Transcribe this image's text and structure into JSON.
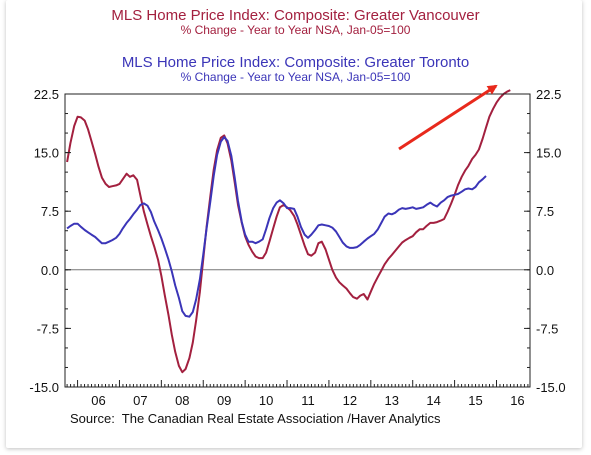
{
  "chart_data": {
    "type": "line",
    "title": "MLS Home Price Index: Composite: Greater Vancouver",
    "subtitle": "% Change - Year to Year    NSA, Jan-05=100",
    "title2": "MLS Home Price Index: Composite: Greater Toronto",
    "subtitle2": "% Change - Year to Year    NSA, Jan-05=100",
    "source": "Source:  The Canadian Real Estate Association /Haver Analytics",
    "xlim": [
      2005.7,
      2016.8
    ],
    "ylim": [
      -15,
      22.5
    ],
    "x_tick_labels": [
      "06",
      "07",
      "08",
      "09",
      "10",
      "11",
      "12",
      "13",
      "14",
      "15",
      "16"
    ],
    "y_tick_labels": [
      "22.5",
      "15.0",
      "7.5",
      "0.0",
      "-7.5",
      "-15.0"
    ],
    "y_ticks": [
      22.5,
      15,
      7.5,
      0,
      -7.5,
      -15
    ],
    "zero_line": true,
    "series": [
      {
        "name": "Greater Vancouver",
        "color": "#a3203f",
        "x": [
          2005.75,
          2005.83,
          2005.92,
          2006.0,
          2006.08,
          2006.17,
          2006.25,
          2006.33,
          2006.42,
          2006.5,
          2006.58,
          2006.67,
          2006.75,
          2006.83,
          2006.92,
          2007.0,
          2007.08,
          2007.17,
          2007.25,
          2007.33,
          2007.42,
          2007.5,
          2007.58,
          2007.67,
          2007.75,
          2007.83,
          2007.92,
          2008.0,
          2008.08,
          2008.17,
          2008.25,
          2008.33,
          2008.42,
          2008.5,
          2008.58,
          2008.67,
          2008.75,
          2008.83,
          2008.92,
          2009.0,
          2009.08,
          2009.17,
          2009.25,
          2009.33,
          2009.42,
          2009.5,
          2009.58,
          2009.67,
          2009.75,
          2009.83,
          2009.92,
          2010.0,
          2010.08,
          2010.17,
          2010.25,
          2010.33,
          2010.42,
          2010.5,
          2010.58,
          2010.67,
          2010.75,
          2010.83,
          2010.92,
          2011.0,
          2011.08,
          2011.17,
          2011.25,
          2011.33,
          2011.42,
          2011.5,
          2011.58,
          2011.67,
          2011.75,
          2011.83,
          2011.92,
          2012.0,
          2012.08,
          2012.17,
          2012.25,
          2012.33,
          2012.42,
          2012.5,
          2012.58,
          2012.67,
          2012.75,
          2012.83,
          2012.92,
          2013.0,
          2013.08,
          2013.17,
          2013.25,
          2013.33,
          2013.42,
          2013.5,
          2013.58,
          2013.67,
          2013.75,
          2013.83,
          2013.92,
          2014.0,
          2014.08,
          2014.17,
          2014.25,
          2014.33,
          2014.42,
          2014.5,
          2014.58,
          2014.67,
          2014.75,
          2014.83,
          2014.92,
          2015.0,
          2015.08,
          2015.17,
          2015.25,
          2015.33,
          2015.42,
          2015.5,
          2015.58,
          2015.67,
          2015.75,
          2015.83,
          2015.92,
          2016.0,
          2016.08,
          2016.17,
          2016.25,
          2016.33
        ],
        "y": [
          13.8,
          16.2,
          18.4,
          19.6,
          19.5,
          19.1,
          18.0,
          16.5,
          14.8,
          13.2,
          11.8,
          11.0,
          10.6,
          10.7,
          10.8,
          11.0,
          11.6,
          12.3,
          11.9,
          12.1,
          11.5,
          9.5,
          7.5,
          5.8,
          4.3,
          3.0,
          1.3,
          -0.8,
          -3.2,
          -5.8,
          -8.3,
          -10.5,
          -12.3,
          -13.1,
          -12.7,
          -11.3,
          -9.3,
          -6.5,
          -2.8,
          1.3,
          5.5,
          9.5,
          12.8,
          15.3,
          16.9,
          17.2,
          16.2,
          14.0,
          11.2,
          8.3,
          6.0,
          4.3,
          3.2,
          2.3,
          1.7,
          1.5,
          1.5,
          2.2,
          3.6,
          5.3,
          6.8,
          8.0,
          8.3,
          8.0,
          7.6,
          6.9,
          5.8,
          4.5,
          3.1,
          2.0,
          1.8,
          2.2,
          3.4,
          3.6,
          2.6,
          1.3,
          0.0,
          -1.0,
          -1.6,
          -2.0,
          -2.4,
          -3.0,
          -3.5,
          -3.7,
          -3.3,
          -3.1,
          -3.8,
          -2.8,
          -1.8,
          -0.9,
          -0.1,
          0.7,
          1.4,
          1.9,
          2.4,
          3.0,
          3.5,
          3.8,
          4.1,
          4.3,
          4.8,
          5.2,
          5.2,
          5.6,
          6.0,
          6.0,
          6.1,
          6.3,
          6.5,
          7.4,
          8.5,
          9.6,
          10.8,
          11.9,
          12.7,
          13.3,
          14.2,
          14.7,
          15.4,
          16.8,
          18.2,
          19.6,
          20.6,
          21.4,
          22.0,
          22.5,
          22.8,
          23.0
        ]
      },
      {
        "name": "Greater Toronto",
        "color": "#3b35b8",
        "x": [
          2005.75,
          2005.83,
          2005.92,
          2006.0,
          2006.08,
          2006.17,
          2006.25,
          2006.33,
          2006.42,
          2006.5,
          2006.58,
          2006.67,
          2006.75,
          2006.83,
          2006.92,
          2007.0,
          2007.08,
          2007.17,
          2007.25,
          2007.33,
          2007.42,
          2007.5,
          2007.58,
          2007.67,
          2007.75,
          2007.83,
          2007.92,
          2008.0,
          2008.08,
          2008.17,
          2008.25,
          2008.33,
          2008.42,
          2008.5,
          2008.58,
          2008.67,
          2008.75,
          2008.83,
          2008.92,
          2009.0,
          2009.08,
          2009.17,
          2009.25,
          2009.33,
          2009.42,
          2009.5,
          2009.58,
          2009.67,
          2009.75,
          2009.83,
          2009.92,
          2010.0,
          2010.08,
          2010.17,
          2010.25,
          2010.33,
          2010.42,
          2010.5,
          2010.58,
          2010.67,
          2010.75,
          2010.83,
          2010.92,
          2011.0,
          2011.08,
          2011.17,
          2011.25,
          2011.33,
          2011.42,
          2011.5,
          2011.58,
          2011.67,
          2011.75,
          2011.83,
          2011.92,
          2012.0,
          2012.08,
          2012.17,
          2012.25,
          2012.33,
          2012.42,
          2012.5,
          2012.58,
          2012.67,
          2012.75,
          2012.83,
          2012.92,
          2013.0,
          2013.08,
          2013.17,
          2013.25,
          2013.33,
          2013.42,
          2013.5,
          2013.58,
          2013.67,
          2013.75,
          2013.83,
          2013.92,
          2014.0,
          2014.08,
          2014.17,
          2014.25,
          2014.33,
          2014.42,
          2014.5,
          2014.58,
          2014.67,
          2014.75,
          2014.83,
          2014.92,
          2015.0,
          2015.08,
          2015.17,
          2015.25,
          2015.33,
          2015.42,
          2015.5,
          2015.58,
          2015.67,
          2015.75,
          2015.83,
          2015.92,
          2016.0,
          2016.08,
          2016.17,
          2016.25,
          2016.33
        ],
        "y": [
          5.3,
          5.6,
          5.9,
          5.9,
          5.5,
          5.1,
          4.8,
          4.5,
          4.2,
          3.8,
          3.4,
          3.4,
          3.6,
          3.8,
          4.1,
          4.6,
          5.3,
          6.0,
          6.5,
          7.1,
          7.7,
          8.3,
          8.5,
          8.2,
          7.4,
          6.2,
          5.1,
          4.0,
          2.8,
          1.3,
          -0.2,
          -2.0,
          -3.6,
          -5.3,
          -5.9,
          -6.0,
          -5.4,
          -3.8,
          -1.2,
          1.9,
          5.3,
          8.8,
          12.0,
          14.7,
          16.4,
          17.0,
          16.5,
          14.6,
          11.8,
          8.8,
          6.1,
          4.5,
          3.6,
          3.6,
          3.4,
          3.6,
          3.9,
          5.2,
          6.6,
          7.9,
          8.6,
          8.9,
          8.5,
          7.9,
          7.9,
          7.8,
          6.8,
          5.5,
          4.5,
          4.1,
          4.5,
          5.1,
          5.7,
          5.8,
          5.7,
          5.6,
          5.4,
          4.9,
          4.2,
          3.5,
          3.0,
          2.8,
          2.8,
          2.9,
          3.2,
          3.6,
          4.0,
          4.3,
          4.6,
          5.2,
          6.0,
          6.8,
          7.2,
          7.1,
          7.3,
          7.7,
          7.9,
          7.8,
          7.9,
          8.0,
          7.8,
          7.9,
          8.0,
          8.3,
          8.6,
          8.3,
          8.1,
          8.6,
          8.9,
          9.3,
          9.5,
          9.6,
          9.7,
          10.0,
          10.3,
          10.4,
          10.3,
          10.6,
          11.2,
          11.6,
          12.0,
          null,
          null,
          null,
          null,
          null,
          null,
          null
        ]
      }
    ],
    "annotation": {
      "type": "arrow",
      "color": "#e8291c"
    }
  }
}
